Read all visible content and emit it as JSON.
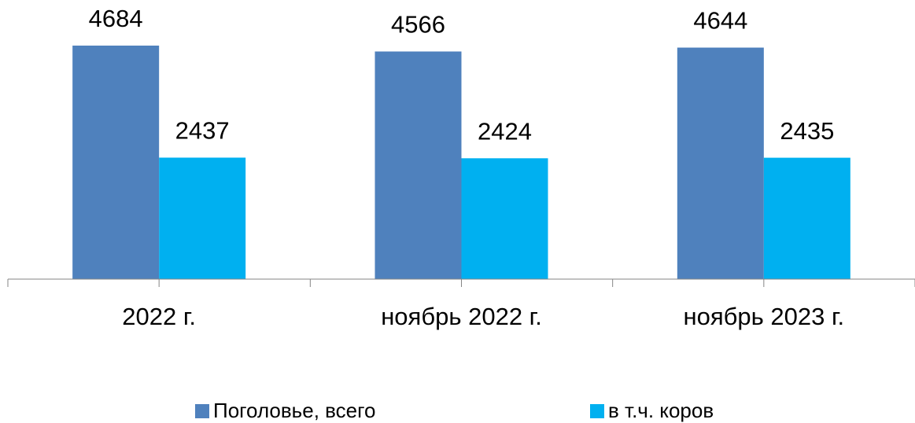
{
  "chart_data": {
    "type": "bar",
    "categories": [
      "2022 г.",
      "ноябрь 2022 г.",
      "ноябрь 2023 г."
    ],
    "series": [
      {
        "name": "Поголовье, всего",
        "color": "#4f81bd",
        "values": [
          4684,
          4566,
          4644
        ]
      },
      {
        "name": "в т.ч. коров",
        "color": "#00b0f0",
        "values": [
          2437,
          2424,
          2435
        ]
      }
    ],
    "legend": "bottom"
  }
}
